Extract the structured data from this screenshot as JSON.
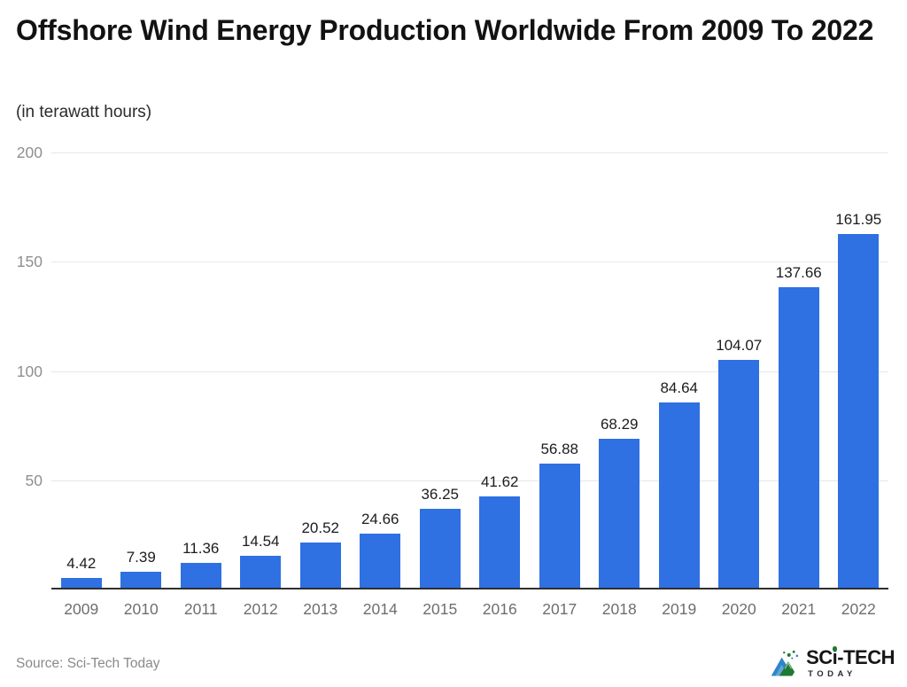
{
  "header": {
    "title": "Offshore Wind Energy Production Worldwide From 2009 To 2022",
    "subtitle": "(in terawatt hours)"
  },
  "chart_data": {
    "type": "bar",
    "title": "Offshore Wind Energy Production Worldwide From 2009 To 2022",
    "subtitle": "(in terawatt hours)",
    "unit": "terawatt hours",
    "categories": [
      "2009",
      "2010",
      "2011",
      "2012",
      "2013",
      "2014",
      "2015",
      "2016",
      "2017",
      "2018",
      "2019",
      "2020",
      "2021",
      "2022"
    ],
    "values": [
      4.42,
      7.39,
      11.36,
      14.54,
      20.52,
      24.66,
      36.25,
      41.62,
      56.88,
      68.29,
      84.64,
      104.07,
      137.66,
      161.95
    ],
    "xlabel": "",
    "ylabel": "",
    "ylim": [
      0,
      200
    ],
    "yticks": [
      50,
      100,
      150,
      200
    ],
    "grid": true,
    "legend": "none",
    "data_labels": true
  },
  "colors": {
    "bar": "#2f70e2",
    "grid": "#e7e7e7",
    "axis": "#2f2f2f",
    "ytick_label": "#8f8f8f",
    "xtick_label": "#6e6e6e",
    "value_label": "#1c1c1c",
    "source_text": "#8a8a8a",
    "logo_green": "#1d7a33",
    "logo_blue": "#2e86c8"
  },
  "footer": {
    "source": "Source: Sci-Tech Today"
  },
  "logo": {
    "brand_pre": "SC",
    "brand_i": "i",
    "brand_post": "-TECH",
    "subtext": "TODAY"
  }
}
